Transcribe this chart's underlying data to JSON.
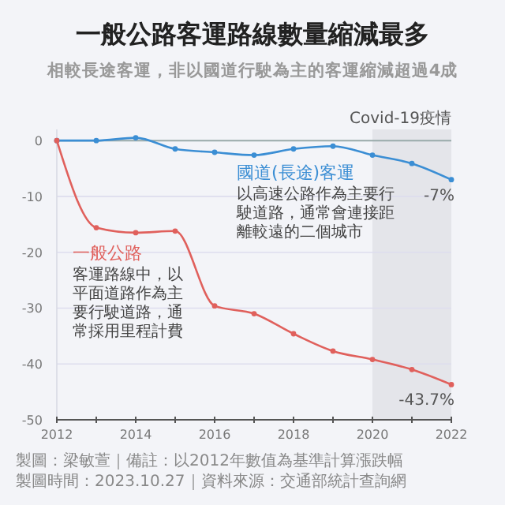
{
  "chart_data": {
    "type": "line",
    "title": "一般公路客運路線數量縮減最多",
    "subtitle": "相較長途客運，非以國道行駛為主的客運縮減超過4成",
    "x": [
      2012,
      2013,
      2014,
      2015,
      2016,
      2017,
      2018,
      2019,
      2020,
      2021,
      2022
    ],
    "series": [
      {
        "name": "國道(長途)客運",
        "color": "#3b8ed4",
        "values": [
          0,
          0,
          0.5,
          -1.5,
          -2.1,
          -2.6,
          -1.5,
          -1.0,
          -2.6,
          -4.1,
          -7
        ],
        "value_labels": [
          null,
          null,
          null,
          null,
          null,
          null,
          null,
          null,
          null,
          null,
          "-7%"
        ]
      },
      {
        "name": "一般公路",
        "color": "#e0605c",
        "values": [
          0,
          -15.6,
          -16.5,
          -16.2,
          -29.6,
          -31.0,
          -34.6,
          -37.7,
          -39.2,
          -41.0,
          -43.7
        ],
        "value_labels": [
          null,
          null,
          null,
          null,
          null,
          null,
          null,
          null,
          null,
          null,
          "-43.7%"
        ]
      }
    ],
    "xlim": [
      2012,
      2022
    ],
    "ylim": [
      -50,
      2
    ],
    "xticks": [
      2012,
      {
        "value": 2013,
        "label": null
      },
      2014,
      {
        "value": 2015,
        "label": null
      },
      2016,
      {
        "value": 2017,
        "label": null
      },
      2018,
      {
        "value": 2019,
        "label": null
      },
      2020,
      {
        "value": 2021,
        "label": null
      },
      2022
    ],
    "yticks": [
      -50,
      -40,
      -30,
      -20,
      -10,
      0
    ],
    "grid": "y",
    "marker": "circle",
    "line_style": "solid",
    "bands": [
      {
        "axis": "x",
        "from": 2020,
        "to": 2022,
        "label": "Covid-19疫情",
        "color": "#e4e5ea"
      }
    ],
    "annotations": [
      "以高速公路作為主要行駛道路，通常會連接距離較遠的二個城市",
      "客運路線中，以平面道路作為主要行駛道路，通常採用里程計費",
      "製圖：梁敏萱｜備註：以2012年數值為基準計算漲跌幅",
      "製圖時間：2023.10.27｜資料來源：交通部統計查詢網"
    ]
  }
}
